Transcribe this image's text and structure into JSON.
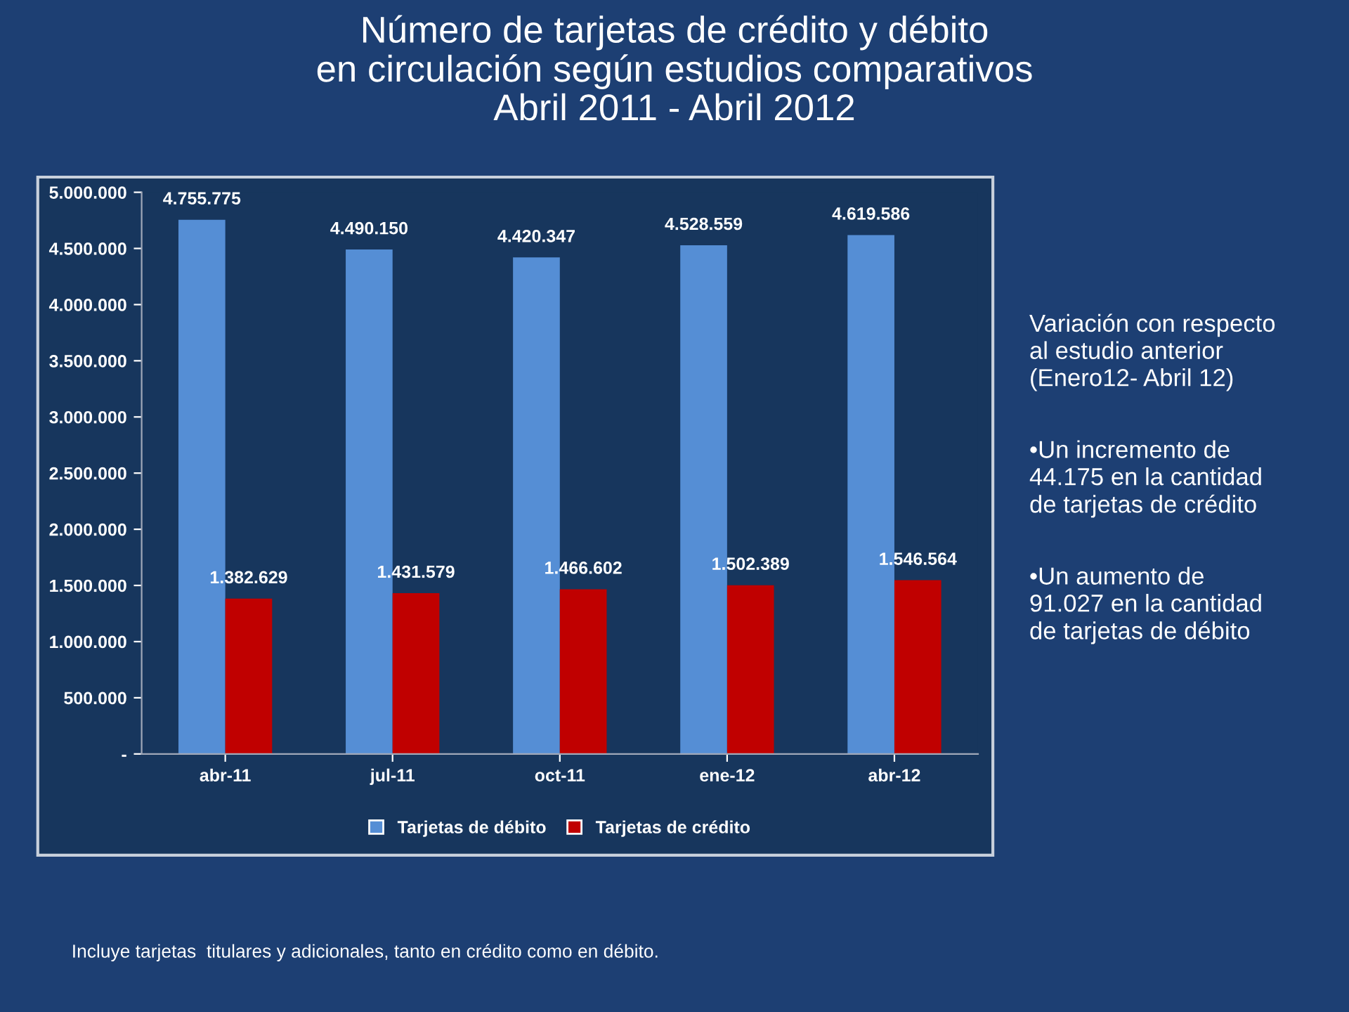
{
  "chart_data": {
    "type": "bar",
    "title": "Número de tarjetas de crédito y débito\nen circulación según estudios comparativos\nAbril 2011 - Abril 2012",
    "categories": [
      "abr-11",
      "jul-11",
      "oct-11",
      "ene-12",
      "abr-12"
    ],
    "series": [
      {
        "name": "Tarjetas de débito",
        "color": "#558ed5",
        "values": [
          4755775,
          4490150,
          4420347,
          4528559,
          4619586
        ],
        "value_labels": [
          "4.755.775",
          "4.490.150",
          "4.420.347",
          "4.528.559",
          "4.619.586"
        ]
      },
      {
        "name": "Tarjetas de crédito",
        "color": "#c00000",
        "values": [
          1382629,
          1431579,
          1466602,
          1502389,
          1546564
        ],
        "value_labels": [
          "1.382.629",
          "1.431.579",
          "1.466.602",
          "1.502.389",
          "1.546.564"
        ]
      }
    ],
    "ylim": [
      0,
      5000000
    ],
    "yticks": [
      {
        "value": 0,
        "label": "-"
      },
      {
        "value": 500000,
        "label": "500.000"
      },
      {
        "value": 1000000,
        "label": "1.000.000"
      },
      {
        "value": 1500000,
        "label": "1.500.000"
      },
      {
        "value": 2000000,
        "label": "2.000.000"
      },
      {
        "value": 2500000,
        "label": "2.500.000"
      },
      {
        "value": 3000000,
        "label": "3.000.000"
      },
      {
        "value": 3500000,
        "label": "3.500.000"
      },
      {
        "value": 4000000,
        "label": "4.000.000"
      },
      {
        "value": 4500000,
        "label": "4.500.000"
      },
      {
        "value": 5000000,
        "label": "5.000.000"
      }
    ],
    "grid": false,
    "legend": "bottom",
    "annotations": [
      "Variación con respecto\nal estudio anterior\n(Enero12- Abril 12)",
      "•Un incremento de\n44.175 en la cantidad\nde tarjetas de crédito",
      "•Un aumento de\n91.027 en la cantidad\nde tarjetas de débito",
      "Incluye tarjetas  titulares y adicionales, tanto en crédito como en débito."
    ]
  }
}
